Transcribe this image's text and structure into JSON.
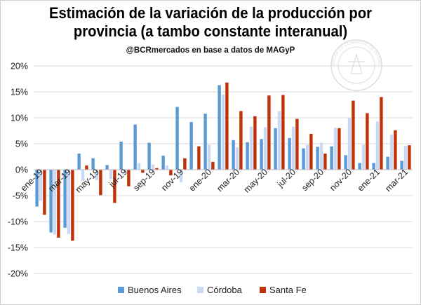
{
  "chart_data": {
    "type": "bar",
    "title": "Estimación de la variación de la producción por provincia (a tambo constante interanual)",
    "subtitle": "@BCRmercados en base a datos de MAGyP",
    "xlabel": "",
    "ylabel": "",
    "ylim": [
      -0.2,
      0.2
    ],
    "yticks": [
      -0.2,
      -0.15,
      -0.1,
      -0.05,
      0,
      0.05,
      0.1,
      0.15,
      0.2
    ],
    "ytick_labels": [
      "-20%",
      "-15%",
      "-10%",
      "-5%",
      "0%",
      "5%",
      "10%",
      "15%",
      "20%"
    ],
    "grid": true,
    "legend_position": "bottom",
    "categories": [
      "ene-19",
      "feb-19",
      "mar-19",
      "abr-19",
      "may-19",
      "jun-19",
      "jul-19",
      "ago-19",
      "sep-19",
      "oct-19",
      "nov-19",
      "dic-19",
      "ene-20",
      "feb-20",
      "mar-20",
      "abr-20",
      "may-20",
      "jun-20",
      "jul-20",
      "ago-20",
      "sep-20",
      "oct-20",
      "nov-20",
      "dic-20",
      "ene-21",
      "feb-21",
      "mar-21"
    ],
    "tick_labels": [
      "ene-19",
      "mar-19",
      "may-19",
      "jul-19",
      "sep-19",
      "nov-19",
      "ene-20",
      "mar-20",
      "may-20",
      "jul-20",
      "sep-20",
      "nov-20",
      "ene-21",
      "mar-21"
    ],
    "series": [
      {
        "name": "Buenos Aires",
        "color": "#5B9BD5",
        "values": [
          -0.071,
          -0.121,
          -0.112,
          0.031,
          0.022,
          0.009,
          0.054,
          0.087,
          0.052,
          0.027,
          0.121,
          0.092,
          0.108,
          0.163,
          0.057,
          0.053,
          0.059,
          0.08,
          0.061,
          0.041,
          0.044,
          0.045,
          0.028,
          0.013,
          0.013,
          0.025,
          0.017
        ]
      },
      {
        "name": "Córdoba",
        "color": "#C9DAF4",
        "values": [
          -0.06,
          -0.125,
          -0.124,
          -0.022,
          -0.02,
          -0.018,
          -0.007,
          0.013,
          0.01,
          0.008,
          -0.024,
          0.0,
          0.048,
          0.145,
          0.043,
          0.083,
          0.082,
          0.113,
          0.083,
          0.048,
          0.052,
          0.081,
          0.1,
          0.048,
          0.093,
          0.068,
          0.046
        ]
      },
      {
        "name": "Santa Fe",
        "color": "#C0310A",
        "values": [
          -0.087,
          -0.131,
          -0.137,
          0.008,
          -0.049,
          -0.064,
          -0.032,
          -0.006,
          0.003,
          -0.011,
          0.022,
          0.045,
          0.015,
          0.168,
          0.113,
          0.103,
          0.143,
          0.144,
          0.098,
          0.069,
          0.031,
          0.08,
          0.133,
          0.109,
          0.14,
          0.076,
          0.047
        ]
      }
    ]
  },
  "watermark": "BOLSA DE COMERCIO DE ROSARIO"
}
